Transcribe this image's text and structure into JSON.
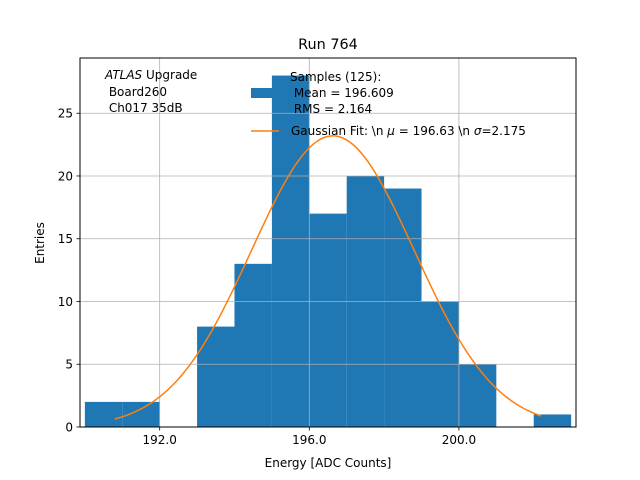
{
  "chart_data": {
    "type": "bar",
    "title": "Run 764",
    "xlabel": "Energy [ADC Counts]",
    "ylabel": "Entries",
    "xlim": [
      189.87,
      203.13
    ],
    "ylim": [
      0,
      29.4
    ],
    "grid": true,
    "x_ticks": [
      192.0,
      196.0,
      200.0
    ],
    "x_tick_labels": [
      "192.0",
      "196.0",
      "200.0"
    ],
    "y_ticks": [
      0,
      5,
      10,
      15,
      20,
      25
    ],
    "y_tick_labels": [
      "0",
      "5",
      "10",
      "15",
      "20",
      "25"
    ],
    "bins": [
      {
        "left": 190.0,
        "right": 191.0,
        "value": 2
      },
      {
        "left": 191.0,
        "right": 192.0,
        "value": 2
      },
      {
        "left": 192.0,
        "right": 193.0,
        "value": 0
      },
      {
        "left": 193.0,
        "right": 194.0,
        "value": 8
      },
      {
        "left": 194.0,
        "right": 195.0,
        "value": 13
      },
      {
        "left": 195.0,
        "right": 196.0,
        "value": 28
      },
      {
        "left": 196.0,
        "right": 197.0,
        "value": 17
      },
      {
        "left": 197.0,
        "right": 198.0,
        "value": 20
      },
      {
        "left": 198.0,
        "right": 199.0,
        "value": 19
      },
      {
        "left": 199.0,
        "right": 200.0,
        "value": 10
      },
      {
        "left": 200.0,
        "right": 201.0,
        "value": 5
      },
      {
        "left": 201.0,
        "right": 202.0,
        "value": 0
      },
      {
        "left": 202.0,
        "right": 203.0,
        "value": 1
      }
    ],
    "fit": {
      "name": "Gaussian Fit",
      "mu": 196.63,
      "sigma": 2.175,
      "amplitude": 23.2,
      "x_range": [
        190.8,
        202.2
      ]
    },
    "annotation": {
      "line1_italic": "ATLAS",
      "line1_rest": " Upgrade",
      "line2": " Board260",
      "line3": " Ch017 35dB"
    },
    "legend": {
      "position": "top-right",
      "hist_label_lines": [
        "Samples (125):",
        " Mean = 196.609",
        " RMS = 2.164"
      ],
      "fit_label_prefix": "Gaussian Fit: \\n ",
      "fit_label_mu_symbol": "μ",
      "fit_label_mid": " = 196.63 \\n ",
      "fit_label_sigma_symbol": "σ",
      "fit_label_suffix": "=2.175"
    },
    "colors": {
      "bars": "#1f77b4",
      "fit": "#ff7f0e",
      "grid": "#b0b0b0",
      "axes": "#000000"
    }
  }
}
